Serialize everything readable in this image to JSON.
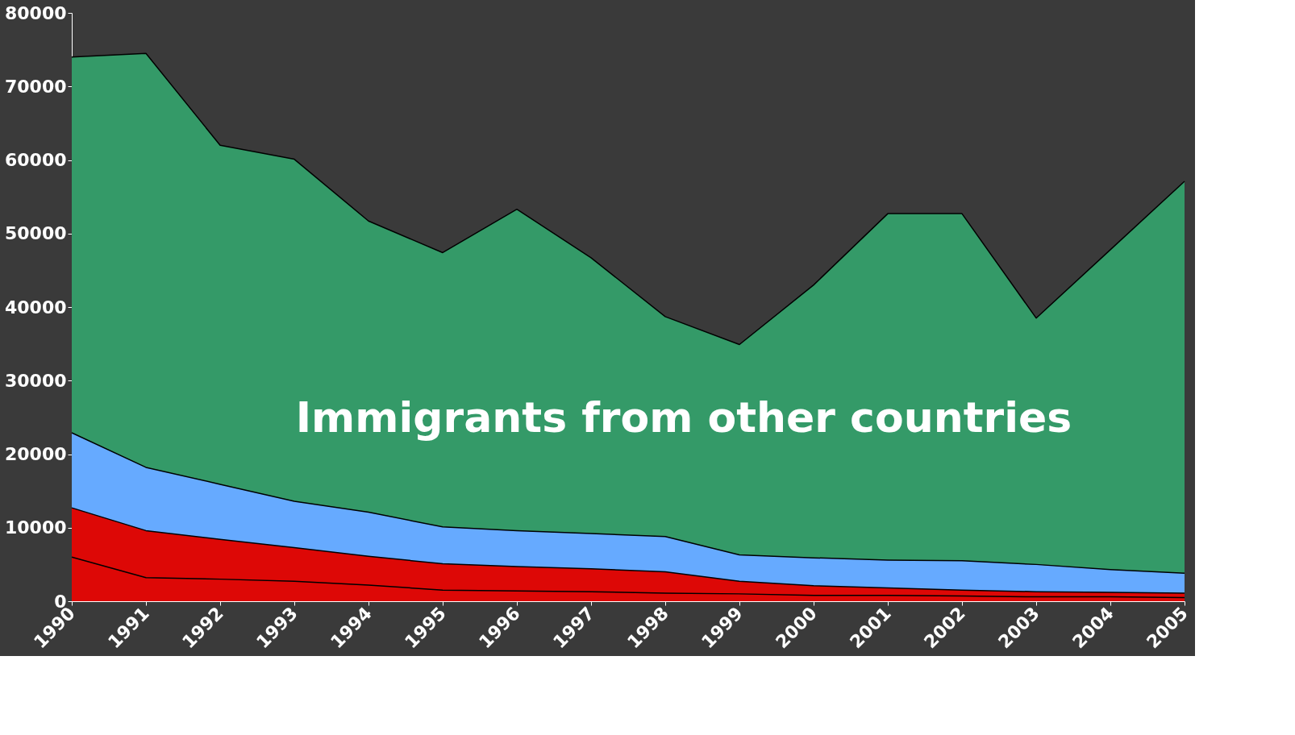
{
  "chart_data": {
    "type": "area",
    "stacked": true,
    "categories": [
      "1990",
      "1991",
      "1992",
      "1993",
      "1994",
      "1995",
      "1996",
      "1997",
      "1998",
      "1999",
      "2000",
      "2001",
      "2002",
      "2003",
      "2004",
      "2005"
    ],
    "series": [
      {
        "color": "#dd0806",
        "values": [
          6000,
          3200,
          3000,
          2700,
          2200,
          1500,
          1400,
          1300,
          1100,
          1000,
          800,
          800,
          700,
          600,
          600,
          500
        ]
      },
      {
        "color": "#dd0806",
        "values": [
          6700,
          6400,
          5400,
          4600,
          3900,
          3600,
          3300,
          3100,
          2900,
          1700,
          1300,
          1000,
          800,
          700,
          600,
          600
        ]
      },
      {
        "color": "#66aaff",
        "values": [
          10200,
          8600,
          7500,
          6300,
          6000,
          5000,
          4900,
          4800,
          4800,
          3600,
          3800,
          3800,
          4000,
          3700,
          3100,
          2700
        ]
      },
      {
        "color": "#349a68",
        "values": [
          51100,
          56300,
          46100,
          46500,
          39600,
          37300,
          43700,
          37500,
          29900,
          28600,
          37100,
          47100,
          47200,
          33500,
          43500,
          53300
        ]
      }
    ],
    "ylim": [
      0,
      80000
    ],
    "yticks": [
      0,
      10000,
      20000,
      30000,
      40000,
      50000,
      60000,
      70000,
      80000
    ],
    "grid": false,
    "legend": false,
    "annotations": [
      "Immigrants from other countries"
    ]
  }
}
